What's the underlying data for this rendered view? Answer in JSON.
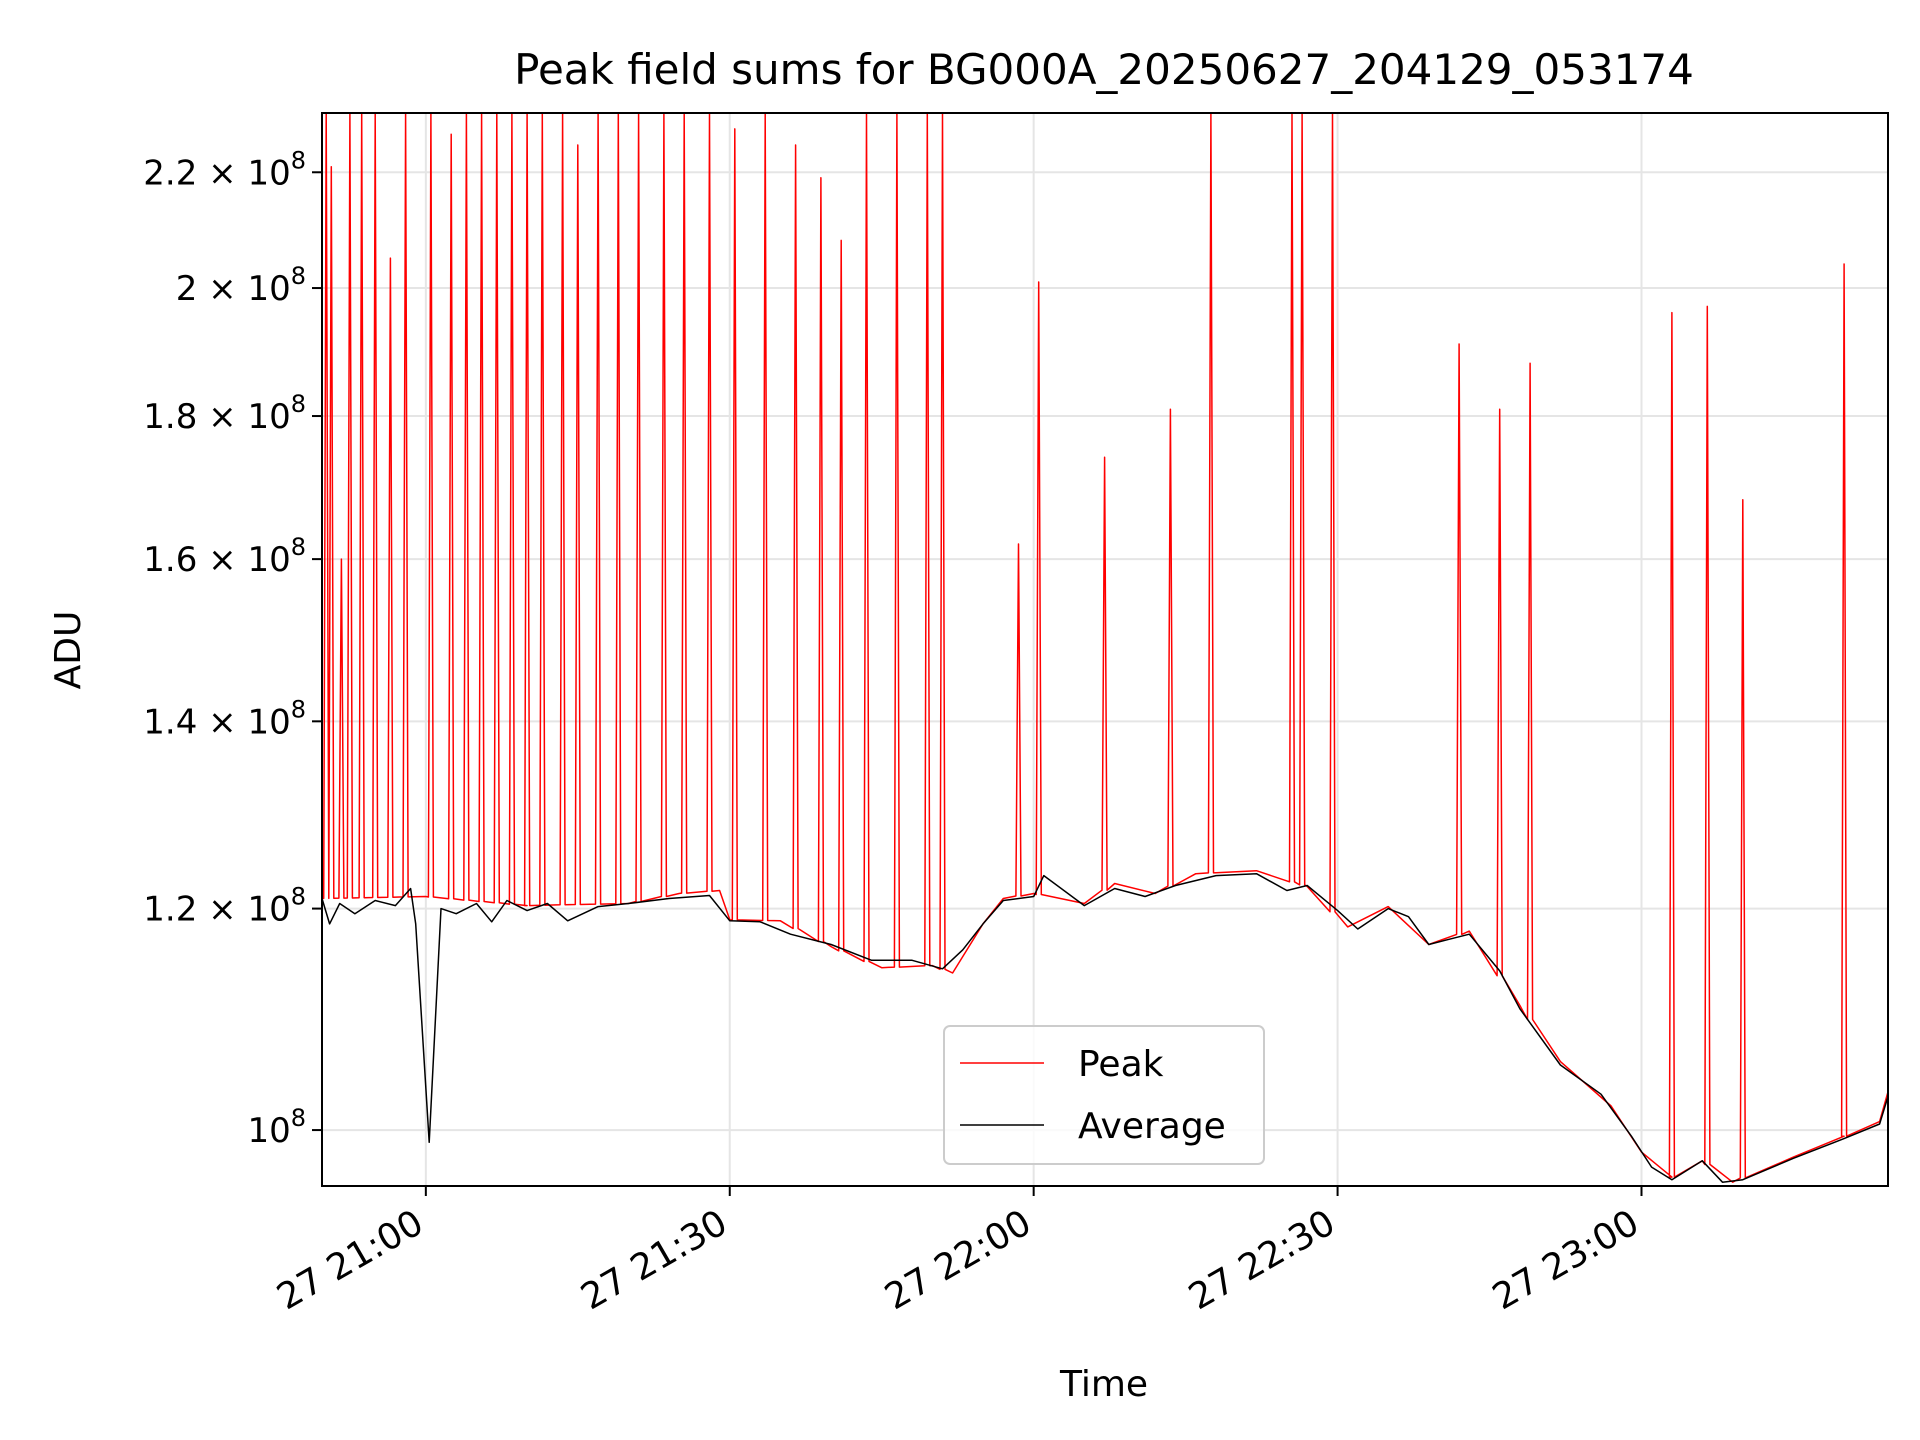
{
  "chart_data": {
    "type": "line",
    "title": "Peak field sums for BG000A_20250627_204129_053174",
    "xlabel": "Time",
    "ylabel": "ADU",
    "yscale": "log",
    "ylim": [
      95500000,
      231000000
    ],
    "xlim": [
      "2025-06-27 20:49:45",
      "2025-06-27 23:24:20"
    ],
    "x_ticks": [
      {
        "value": "2025-06-27 21:00",
        "label": "27 21:00"
      },
      {
        "value": "2025-06-27 21:30",
        "label": "27 21:30"
      },
      {
        "value": "2025-06-27 22:00",
        "label": "27 22:00"
      },
      {
        "value": "2025-06-27 22:30",
        "label": "27 22:30"
      },
      {
        "value": "2025-06-27 23:00",
        "label": "27 23:00"
      }
    ],
    "y_ticks": [
      {
        "value": 100000000,
        "label": "10",
        "exp": "8"
      },
      {
        "value": 120000000,
        "label": "1.2 × 10",
        "exp": "8"
      },
      {
        "value": 140000000,
        "label": "1.4 × 10",
        "exp": "8"
      },
      {
        "value": 160000000,
        "label": "1.6 × 10",
        "exp": "8"
      },
      {
        "value": 180000000,
        "label": "1.8 × 10",
        "exp": "8"
      },
      {
        "value": 200000000,
        "label": "2 × 10",
        "exp": "8"
      },
      {
        "value": 220000000,
        "label": "2.2 × 10",
        "exp": "8"
      }
    ],
    "grid": true,
    "legend": {
      "position": "bottom-center"
    },
    "series": [
      {
        "name": "Peak",
        "color": "#ff0000",
        "baseline": [
          [
            "2025-06-27 20:49:45",
            121000000
          ],
          [
            "2025-06-27 21:00:00",
            121200000
          ],
          [
            "2025-06-27 21:10:00",
            120300000
          ],
          [
            "2025-06-27 21:20:00",
            120500000
          ],
          [
            "2025-06-27 21:25:00",
            121500000
          ],
          [
            "2025-06-27 21:29:00",
            121800000
          ],
          [
            "2025-06-27 21:30:00",
            118900000
          ],
          [
            "2025-06-27 21:35:00",
            118800000
          ],
          [
            "2025-06-27 21:40:00",
            116300000
          ],
          [
            "2025-06-27 21:45:00",
            114300000
          ],
          [
            "2025-06-27 21:50:00",
            114500000
          ],
          [
            "2025-06-27 21:52:00",
            113800000
          ],
          [
            "2025-06-27 21:55:00",
            118500000
          ],
          [
            "2025-06-27 21:57:00",
            121000000
          ],
          [
            "2025-06-27 22:00:00",
            121500000
          ],
          [
            "2025-06-27 22:05:00",
            120500000
          ],
          [
            "2025-06-27 22:08:00",
            122500000
          ],
          [
            "2025-06-27 22:12:00",
            121500000
          ],
          [
            "2025-06-27 22:16:00",
            123500000
          ],
          [
            "2025-06-27 22:22:00",
            123800000
          ],
          [
            "2025-06-27 22:27:00",
            122200000
          ],
          [
            "2025-06-27 22:31:00",
            118200000
          ],
          [
            "2025-06-27 22:35:00",
            120200000
          ],
          [
            "2025-06-27 22:39:00",
            116500000
          ],
          [
            "2025-06-27 22:43:00",
            117800000
          ],
          [
            "2025-06-27 22:48:00",
            110800000
          ],
          [
            "2025-06-27 22:52:00",
            105800000
          ],
          [
            "2025-06-27 22:57:00",
            102000000
          ],
          [
            "2025-06-27 23:00:00",
            98200000
          ],
          [
            "2025-06-27 23:03:00",
            96200000
          ],
          [
            "2025-06-27 23:06:00",
            97500000
          ],
          [
            "2025-06-27 23:09:00",
            95800000
          ],
          [
            "2025-06-27 23:15:00",
            97800000
          ],
          [
            "2025-06-27 23:20:00",
            99500000
          ],
          [
            "2025-06-27 23:23:30",
            100700000
          ],
          [
            "2025-06-27 23:24:20",
            103200000
          ]
        ],
        "spikes": [
          [
            "2025-06-27 20:50:10",
            231000000
          ],
          [
            "2025-06-27 20:50:40",
            221000000
          ],
          [
            "2025-06-27 20:51:40",
            160000000
          ],
          [
            "2025-06-27 20:52:30",
            231000000
          ],
          [
            "2025-06-27 20:53:40",
            231000000
          ],
          [
            "2025-06-27 20:55:00",
            231000000
          ],
          [
            "2025-06-27 20:56:30",
            205000000
          ],
          [
            "2025-06-27 20:58:00",
            231000000
          ],
          [
            "2025-06-27 21:00:30",
            231000000
          ],
          [
            "2025-06-27 21:02:30",
            227000000
          ],
          [
            "2025-06-27 21:04:00",
            231000000
          ],
          [
            "2025-06-27 21:05:30",
            231000000
          ],
          [
            "2025-06-27 21:07:00",
            231000000
          ],
          [
            "2025-06-27 21:08:30",
            231000000
          ],
          [
            "2025-06-27 21:10:00",
            231000000
          ],
          [
            "2025-06-27 21:11:30",
            231000000
          ],
          [
            "2025-06-27 21:13:30",
            231000000
          ],
          [
            "2025-06-27 21:15:00",
            225000000
          ],
          [
            "2025-06-27 21:17:00",
            231000000
          ],
          [
            "2025-06-27 21:19:00",
            231000000
          ],
          [
            "2025-06-27 21:21:00",
            231000000
          ],
          [
            "2025-06-27 21:23:30",
            231000000
          ],
          [
            "2025-06-27 21:25:30",
            231000000
          ],
          [
            "2025-06-27 21:28:00",
            231000000
          ],
          [
            "2025-06-27 21:30:30",
            228000000
          ],
          [
            "2025-06-27 21:33:30",
            231000000
          ],
          [
            "2025-06-27 21:36:30",
            225000000
          ],
          [
            "2025-06-27 21:39:00",
            219000000
          ],
          [
            "2025-06-27 21:41:00",
            208000000
          ],
          [
            "2025-06-27 21:43:30",
            231000000
          ],
          [
            "2025-06-27 21:46:30",
            231000000
          ],
          [
            "2025-06-27 21:49:30",
            231000000
          ],
          [
            "2025-06-27 21:51:00",
            231000000
          ],
          [
            "2025-06-27 21:58:30",
            162000000
          ],
          [
            "2025-06-27 22:00:30",
            201000000
          ],
          [
            "2025-06-27 22:07:00",
            174000000
          ],
          [
            "2025-06-27 22:13:30",
            181000000
          ],
          [
            "2025-06-27 22:17:30",
            231000000
          ],
          [
            "2025-06-27 22:25:30",
            231000000
          ],
          [
            "2025-06-27 22:26:30",
            231000000
          ],
          [
            "2025-06-27 22:29:30",
            231000000
          ],
          [
            "2025-06-27 22:42:00",
            191000000
          ],
          [
            "2025-06-27 22:46:00",
            181000000
          ],
          [
            "2025-06-27 22:49:00",
            188000000
          ],
          [
            "2025-06-27 23:03:00",
            196000000
          ],
          [
            "2025-06-27 23:06:30",
            197000000
          ],
          [
            "2025-06-27 23:10:00",
            168000000
          ],
          [
            "2025-06-27 23:20:00",
            204000000
          ]
        ]
      },
      {
        "name": "Average",
        "color": "#000000",
        "points": [
          [
            "2025-06-27 20:49:45",
            121000000
          ],
          [
            "2025-06-27 20:50:30",
            118500000
          ],
          [
            "2025-06-27 20:51:30",
            120500000
          ],
          [
            "2025-06-27 20:53:00",
            119500000
          ],
          [
            "2025-06-27 20:55:00",
            120800000
          ],
          [
            "2025-06-27 20:57:00",
            120300000
          ],
          [
            "2025-06-27 20:58:30",
            122000000
          ],
          [
            "2025-06-27 20:59:00",
            118500000
          ],
          [
            "2025-06-27 21:00:20",
            99000000
          ],
          [
            "2025-06-27 21:01:30",
            120000000
          ],
          [
            "2025-06-27 21:03:00",
            119500000
          ],
          [
            "2025-06-27 21:05:00",
            120500000
          ],
          [
            "2025-06-27 21:06:30",
            118700000
          ],
          [
            "2025-06-27 21:08:00",
            120800000
          ],
          [
            "2025-06-27 21:10:00",
            119800000
          ],
          [
            "2025-06-27 21:12:00",
            120500000
          ],
          [
            "2025-06-27 21:14:00",
            118800000
          ],
          [
            "2025-06-27 21:17:00",
            120200000
          ],
          [
            "2025-06-27 21:20:00",
            120500000
          ],
          [
            "2025-06-27 21:24:00",
            121000000
          ],
          [
            "2025-06-27 21:28:00",
            121300000
          ],
          [
            "2025-06-27 21:30:00",
            118800000
          ],
          [
            "2025-06-27 21:33:00",
            118700000
          ],
          [
            "2025-06-27 21:36:00",
            117500000
          ],
          [
            "2025-06-27 21:40:00",
            116500000
          ],
          [
            "2025-06-27 21:44:00",
            115000000
          ],
          [
            "2025-06-27 21:48:00",
            115000000
          ],
          [
            "2025-06-27 21:51:00",
            114200000
          ],
          [
            "2025-06-27 21:53:00",
            116000000
          ],
          [
            "2025-06-27 21:55:00",
            118500000
          ],
          [
            "2025-06-27 21:57:00",
            120800000
          ],
          [
            "2025-06-27 22:00:00",
            121200000
          ],
          [
            "2025-06-27 22:01:00",
            123300000
          ],
          [
            "2025-06-27 22:05:00",
            120300000
          ],
          [
            "2025-06-27 22:08:00",
            122000000
          ],
          [
            "2025-06-27 22:11:00",
            121200000
          ],
          [
            "2025-06-27 22:14:00",
            122300000
          ],
          [
            "2025-06-27 22:18:00",
            123300000
          ],
          [
            "2025-06-27 22:22:00",
            123500000
          ],
          [
            "2025-06-27 22:25:00",
            121800000
          ],
          [
            "2025-06-27 22:27:00",
            122300000
          ],
          [
            "2025-06-27 22:30:00",
            119800000
          ],
          [
            "2025-06-27 22:32:00",
            118000000
          ],
          [
            "2025-06-27 22:35:00",
            120000000
          ],
          [
            "2025-06-27 22:37:00",
            119200000
          ],
          [
            "2025-06-27 22:39:00",
            116500000
          ],
          [
            "2025-06-27 22:41:00",
            117000000
          ],
          [
            "2025-06-27 22:43:00",
            117500000
          ],
          [
            "2025-06-27 22:46:00",
            114000000
          ],
          [
            "2025-06-27 22:48:00",
            110500000
          ],
          [
            "2025-06-27 22:52:00",
            105500000
          ],
          [
            "2025-06-27 22:56:00",
            103000000
          ],
          [
            "2025-06-27 22:59:00",
            99500000
          ],
          [
            "2025-06-27 23:01:00",
            97000000
          ],
          [
            "2025-06-27 23:03:00",
            96000000
          ],
          [
            "2025-06-27 23:06:00",
            97500000
          ],
          [
            "2025-06-27 23:08:00",
            95800000
          ],
          [
            "2025-06-27 23:10:00",
            96000000
          ],
          [
            "2025-06-27 23:15:00",
            97700000
          ],
          [
            "2025-06-27 23:20:00",
            99300000
          ],
          [
            "2025-06-27 23:23:30",
            100500000
          ],
          [
            "2025-06-27 23:24:20",
            102800000
          ]
        ]
      }
    ]
  }
}
